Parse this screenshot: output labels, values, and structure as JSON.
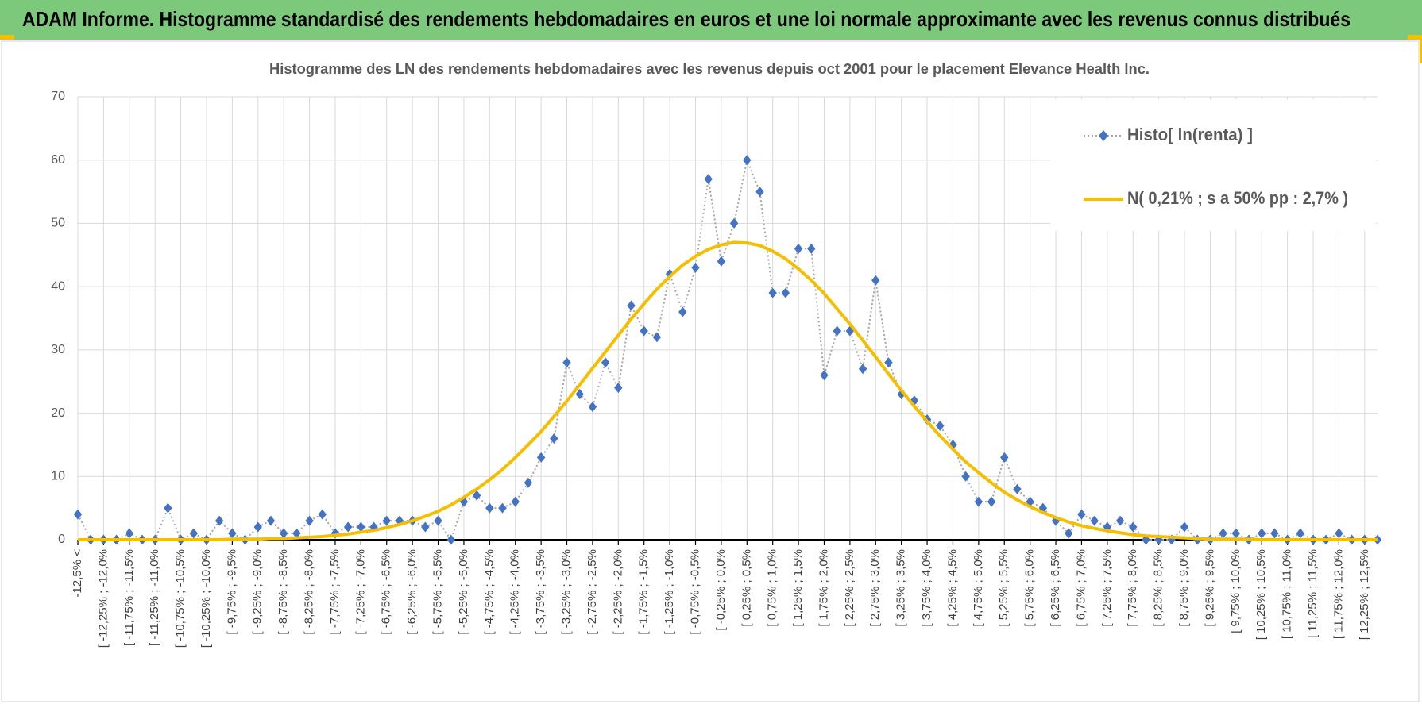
{
  "header": {
    "title": "ADAM Informe. Histogramme standardisé des rendements hebdomadaires en euros et une loi normale approximante avec les revenus connus distribués"
  },
  "chart_data": {
    "type": "line",
    "title": "Histogramme  des LN des rendements hebdomadaires avec les revenus depuis oct 2001 pour le placement Elevance Health Inc.",
    "categories": [
      "-12,5% <",
      null,
      "[ -12,25% ; -12,0%",
      null,
      "[ -11,75% ; -11,5%",
      null,
      "[ -11,25% ; -11,0%",
      null,
      "[ -10,75% ; -10,5%",
      null,
      "[ -10,25% ; -10,0%",
      null,
      "[ -9,75% ; -9,5%",
      null,
      "[ -9,25% ; -9,0%",
      null,
      "[ -8,75% ; -8,5%",
      null,
      "[ -8,25% ; -8,0%",
      null,
      "[ -7,75% ; -7,5%",
      null,
      "[ -7,25% ; -7,0%",
      null,
      "[ -6,75% ; -6,5%",
      null,
      "[ -6,25% ; -6,0%",
      null,
      "[ -5,75% ; -5,5%",
      null,
      "[ -5,25% ; -5,0%",
      null,
      "[ -4,75% ; -4,5%",
      null,
      "[ -4,25% ; -4,0%",
      null,
      "[ -3,75% ; -3,5%",
      null,
      "[ -3,25% ; -3,0%",
      null,
      "[ -2,75% ; -2,5%",
      null,
      "[ -2,25% ; -2,0%",
      null,
      "[ -1,75% ; -1,5%",
      null,
      "[ -1,25% ; -1,0%",
      null,
      "[ -0,75% ; -0,5%",
      null,
      "[ -0,25% ; 0,0%",
      null,
      "[ 0,25% ; 0,5%",
      null,
      "[ 0,75% ; 1,0%",
      null,
      "[ 1,25% ; 1,5%",
      null,
      "[ 1,75% ; 2,0%",
      null,
      "[ 2,25% ; 2,5%",
      null,
      "[ 2,75% ; 3,0%",
      null,
      "[ 3,25% ; 3,5%",
      null,
      "[ 3,75% ; 4,0%",
      null,
      "[ 4,25% ; 4,5%",
      null,
      "[ 4,75% ; 5,0%",
      null,
      "[ 5,25% ; 5,5%",
      null,
      "[ 5,75% ; 6,0%",
      null,
      "[ 6,25% ; 6,5%",
      null,
      "[ 6,75% ; 7,0%",
      null,
      "[ 7,25% ; 7,5%",
      null,
      "[ 7,75% ; 8,0%",
      null,
      "[ 8,25% ; 8,5%",
      null,
      "[ 8,75% ; 9,0%",
      null,
      "[ 9,25% ; 9,5%",
      null,
      "[ 9,75% ; 10,0%",
      null,
      "[ 10,25% ; 10,5%",
      null,
      "[ 10,75% ; 11,0%",
      null,
      "[ 11,25% ; 11,5%",
      null,
      "[ 11,75% ; 12,0%",
      null,
      "[ 12,25% ; 12,5%",
      null
    ],
    "series": [
      {
        "name": "Histo[ ln(renta) ]",
        "color": "#4472c4",
        "line_color": "#a6a6a6",
        "values": [
          4,
          0,
          0,
          0,
          1,
          0,
          0,
          5,
          0,
          1,
          0,
          3,
          1,
          0,
          2,
          3,
          1,
          1,
          3,
          4,
          1,
          2,
          2,
          2,
          3,
          3,
          3,
          2,
          3,
          0,
          6,
          7,
          5,
          5,
          6,
          9,
          13,
          16,
          28,
          23,
          21,
          28,
          24,
          37,
          33,
          32,
          42,
          36,
          43,
          57,
          44,
          50,
          60,
          55,
          39,
          39,
          46,
          46,
          26,
          33,
          33,
          27,
          41,
          28,
          23,
          22,
          19,
          18,
          15,
          10,
          6,
          6,
          13,
          8,
          6,
          5,
          3,
          1,
          4,
          3,
          2,
          3,
          2,
          0,
          0,
          0,
          2,
          0,
          0,
          1,
          1,
          0,
          1,
          1,
          0,
          1,
          0,
          0,
          1,
          0,
          0,
          0
        ]
      },
      {
        "name": "N( 0,21% ; s a 50% pp : 2,7% )",
        "color": "#f5be00",
        "values": [
          0,
          0,
          0,
          0,
          0,
          0,
          0,
          0,
          0,
          0,
          0,
          0,
          0.1,
          0.1,
          0.1,
          0.2,
          0.2,
          0.3,
          0.4,
          0.5,
          0.7,
          0.9,
          1.2,
          1.5,
          1.9,
          2.4,
          3.0,
          3.7,
          4.5,
          5.5,
          6.7,
          8.0,
          9.5,
          11.1,
          13.0,
          15.0,
          17.1,
          19.5,
          21.9,
          24.5,
          27.1,
          29.7,
          32.3,
          34.9,
          37.3,
          39.6,
          41.6,
          43.4,
          44.8,
          45.9,
          46.6,
          47.0,
          46.9,
          46.5,
          45.6,
          44.4,
          42.8,
          41.0,
          38.9,
          36.5,
          34.1,
          31.5,
          28.9,
          26.2,
          23.6,
          21.1,
          18.7,
          16.4,
          14.3,
          12.3,
          10.6,
          9.0,
          7.5,
          6.3,
          5.2,
          4.3,
          3.5,
          2.8,
          2.2,
          1.8,
          1.4,
          1.1,
          0.8,
          0.6,
          0.5,
          0.4,
          0.3,
          0.2,
          0.1,
          0.1,
          0.1,
          0.1,
          0,
          0,
          0,
          0,
          0,
          0,
          0,
          0,
          0,
          0
        ]
      }
    ],
    "ylim": [
      0,
      70
    ],
    "yticks": [
      0,
      10,
      20,
      30,
      40,
      50,
      60,
      70
    ],
    "grid": true,
    "legend": "upper right"
  }
}
